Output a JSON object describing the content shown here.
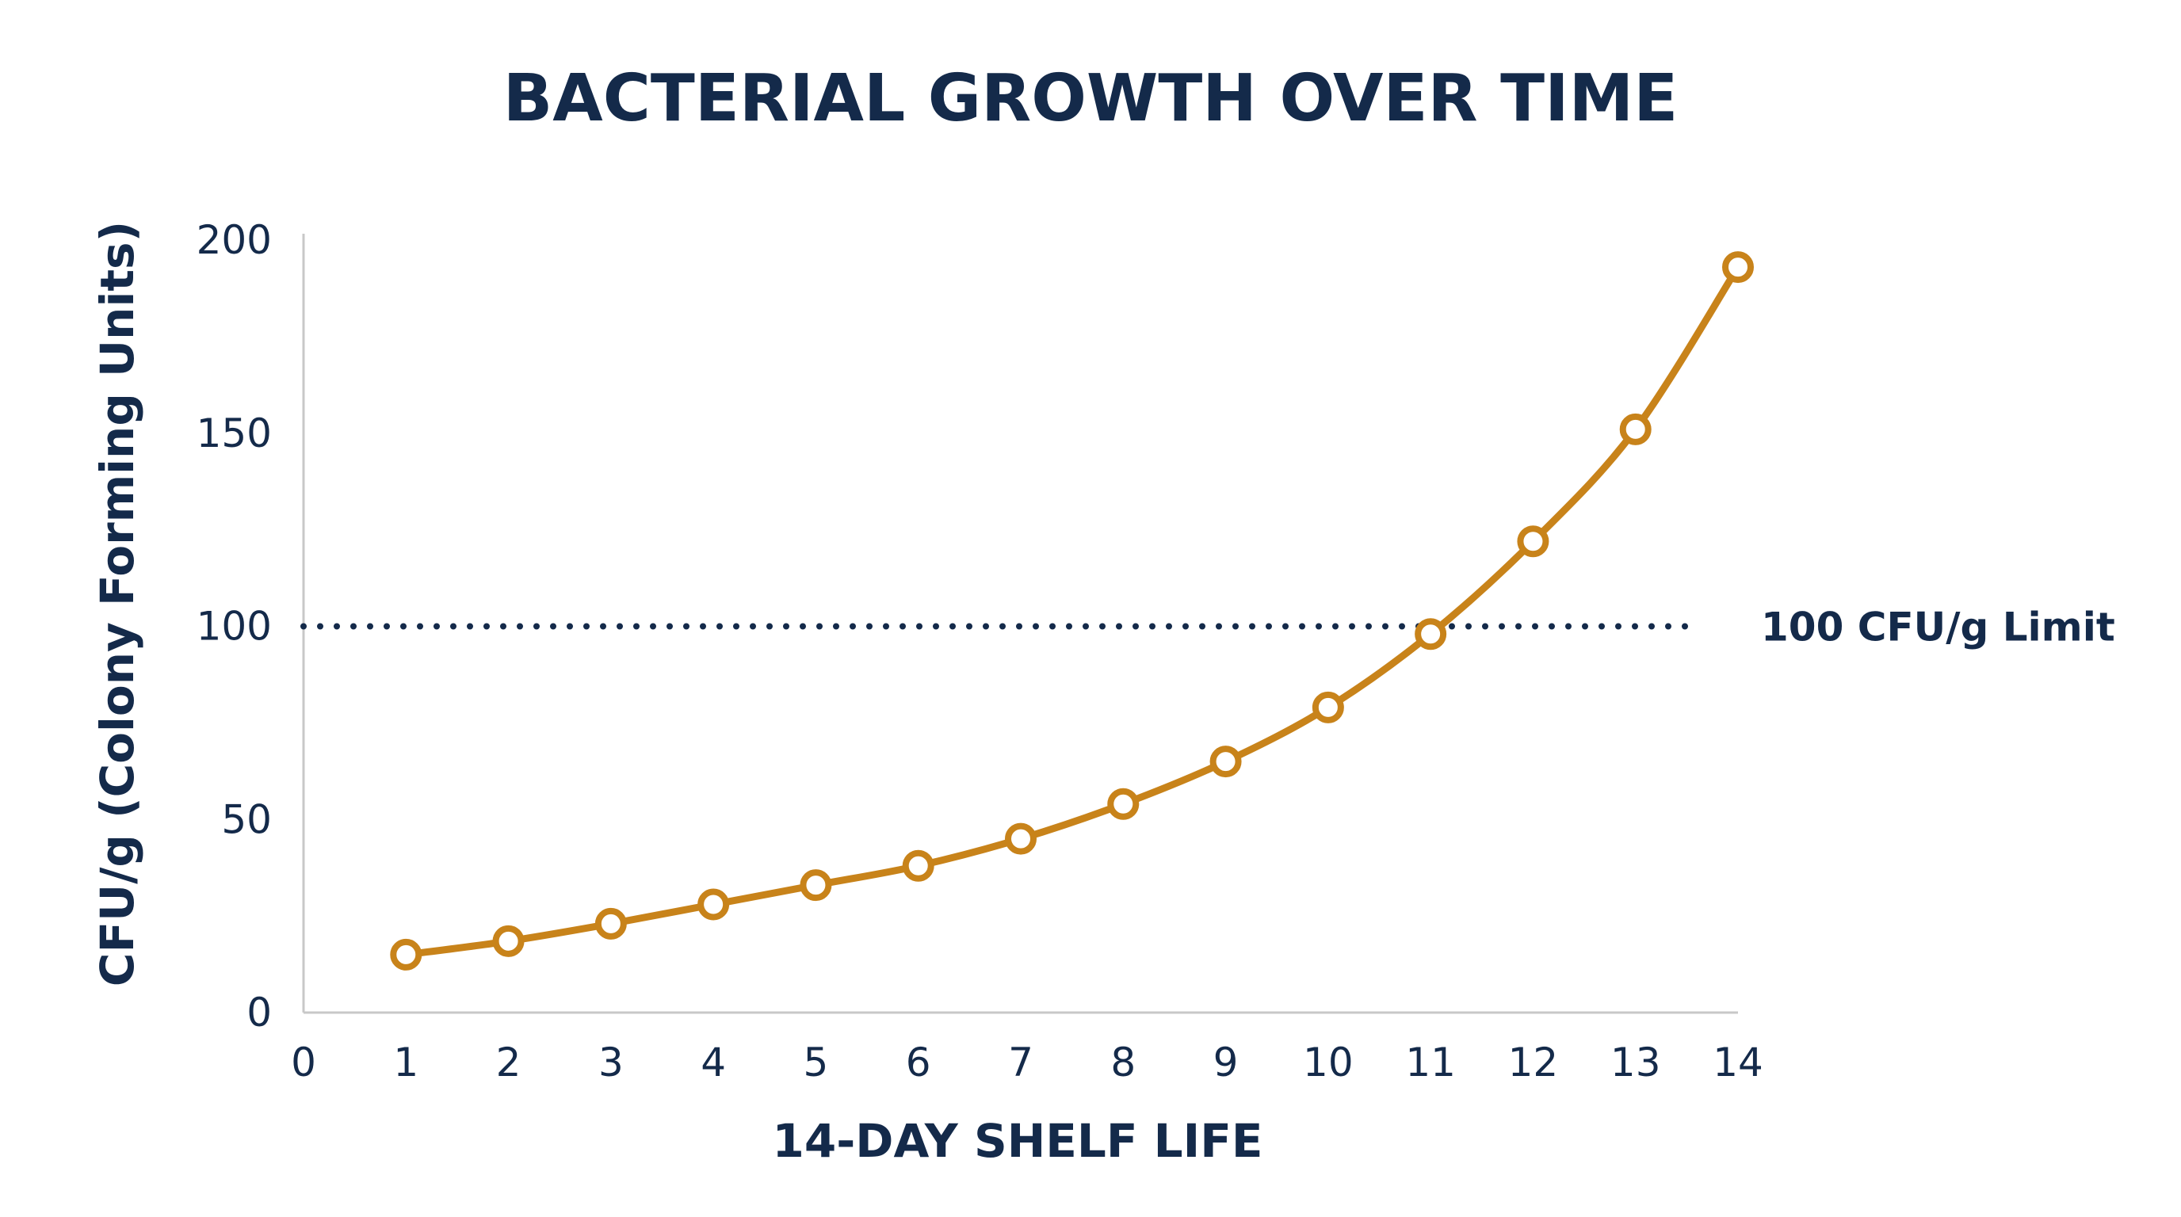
{
  "chart_data": {
    "type": "line",
    "title": "BACTERIAL GROWTH OVER TIME",
    "xlabel": "14-DAY SHELF LIFE",
    "ylabel": "CFU/g (Colony Forming Units)",
    "xlim": [
      0,
      14
    ],
    "ylim": [
      0,
      200
    ],
    "x_ticks": [
      "0",
      "1",
      "2",
      "3",
      "4",
      "5",
      "6",
      "7",
      "8",
      "9",
      "10",
      "11",
      "12",
      "13",
      "14"
    ],
    "y_ticks": [
      "0",
      "50",
      "100",
      "150",
      "200"
    ],
    "grid": false,
    "series": [
      {
        "x": [
          1,
          2,
          3,
          4,
          5,
          6,
          7,
          8,
          9,
          10,
          11,
          12,
          13,
          14
        ],
        "values": [
          15,
          18.5,
          23,
          28,
          33,
          38,
          45,
          54,
          65,
          79,
          98,
          122,
          151,
          193
        ],
        "color": "#c8831a",
        "marker": "open-circle",
        "smooth": true
      }
    ],
    "reference_lines": [
      {
        "y": 100,
        "label": "100 CFU/g Limit",
        "style": "dotted",
        "color": "#142a4a"
      }
    ],
    "colors": {
      "text": "#142a4a",
      "axis": "#c8c8c8",
      "series": "#c8831a"
    }
  }
}
